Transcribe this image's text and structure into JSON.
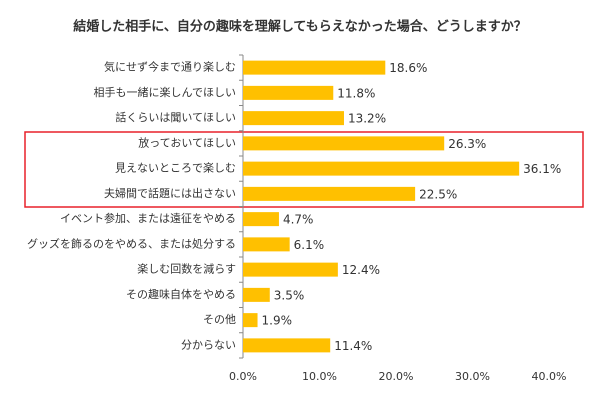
{
  "chart_data": {
    "type": "barh",
    "title": "結婚した相手に、自分の趣味を理解してもらえなかった場合、どうしますか？",
    "categories": [
      "気にせず今まで通り楽しむ",
      "相手も一緒に楽しんでほしい",
      "話くらいは聞いてほしい",
      "放っておいてほしい",
      "見えないところで楽しむ",
      "夫婦間で話題には出さない",
      "イベント参加、または遠征をやめる",
      "グッズを飾るのをやめる、または処分する",
      "楽しむ回数を減らす",
      "その趣味自体をやめる",
      "その他",
      "分からない"
    ],
    "values": [
      18.6,
      11.8,
      13.2,
      26.3,
      36.1,
      22.5,
      4.7,
      6.1,
      12.4,
      3.5,
      1.9,
      11.4
    ],
    "value_labels": [
      "18.6%",
      "11.8%",
      "13.2%",
      "26.3%",
      "36.1%",
      "22.5%",
      "4.7%",
      "6.1%",
      "12.4%",
      "3.5%",
      "1.9%",
      "11.4%"
    ],
    "color": "#ffc000",
    "xlim": [
      0,
      40
    ],
    "xticks": [
      {
        "value": 0,
        "label": "0.0%"
      },
      {
        "value": 10,
        "label": "10.0%"
      },
      {
        "value": 20,
        "label": "20.0%"
      },
      {
        "value": 30,
        "label": "30.0%"
      },
      {
        "value": 40,
        "label": "40.0%"
      }
    ]
  }
}
